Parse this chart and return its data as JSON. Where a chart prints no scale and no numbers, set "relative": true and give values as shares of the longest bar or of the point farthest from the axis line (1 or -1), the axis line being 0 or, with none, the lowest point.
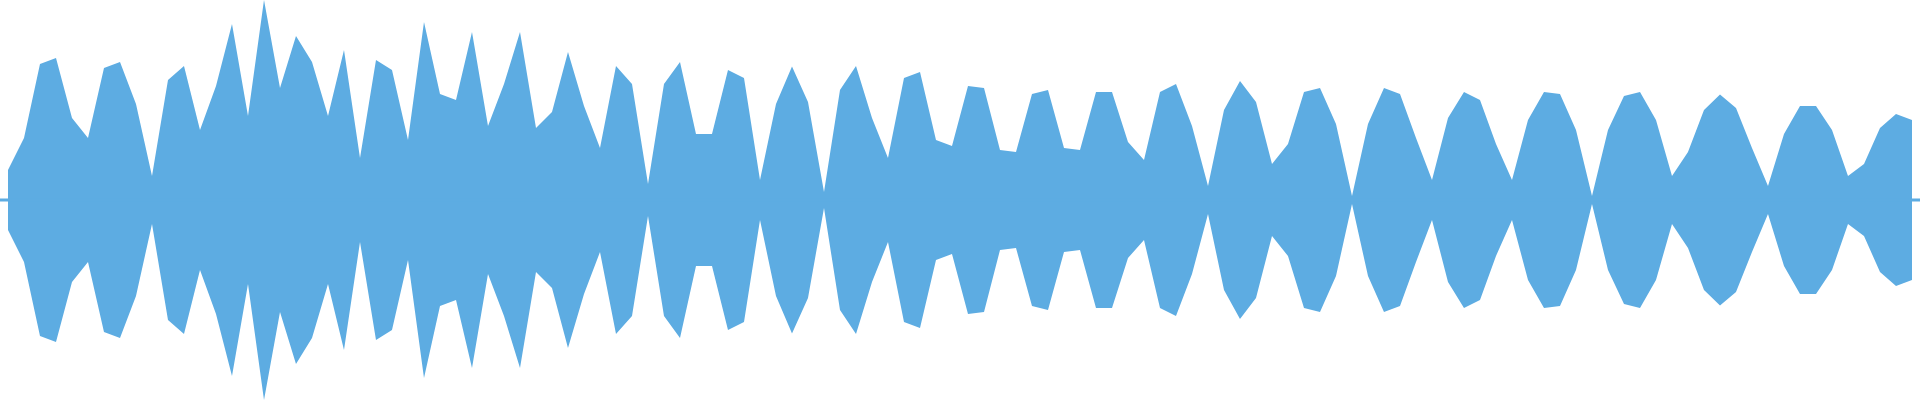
{
  "chart_data": {
    "type": "area",
    "relative": true,
    "ref_lines": [
      {
        "axis": "y",
        "value": 0,
        "color": "#5dace2"
      }
    ],
    "categories": [
      null,
      null,
      null,
      null,
      null,
      null,
      null,
      null,
      null,
      null,
      null,
      null,
      null,
      null,
      null,
      null,
      null,
      null,
      null,
      null,
      null,
      null,
      null,
      null,
      null,
      null,
      null,
      null,
      null,
      null,
      null,
      null,
      null,
      null,
      null,
      null,
      null,
      null,
      null,
      null,
      null,
      null,
      null,
      null,
      null,
      null,
      null,
      null,
      null,
      null,
      null,
      null,
      null,
      null,
      null,
      null,
      null,
      null,
      null,
      null,
      null,
      null,
      null,
      null,
      null,
      null,
      null,
      null,
      null,
      null,
      null,
      null,
      null,
      null,
      null,
      null,
      null,
      null,
      null,
      null,
      null,
      null,
      null,
      null,
      null,
      null,
      null,
      null,
      null,
      null,
      null,
      null,
      null,
      null,
      null,
      null,
      null,
      null,
      null,
      null,
      null,
      null,
      null,
      null,
      null,
      null,
      null,
      null,
      null,
      null,
      null,
      null,
      null,
      null,
      null,
      null,
      null,
      null,
      null,
      null
    ],
    "series": [
      {
        "color": "#5dace2",
        "values": [
          0.15,
          0.31,
          0.68,
          0.71,
          0.41,
          0.31,
          0.66,
          0.69,
          0.48,
          0.12,
          0.6,
          0.67,
          0.35,
          0.57,
          0.88,
          0.42,
          1,
          0.56,
          0.82,
          0.69,
          0.42,
          0.75,
          0.21,
          0.7,
          0.65,
          0.3,
          0.89,
          0.53,
          0.5,
          0.84,
          0.37,
          0.58,
          0.84,
          0.36,
          0.44,
          0.74,
          0.47,
          0.26,
          0.67,
          0.58,
          0.08,
          0.58,
          0.69,
          0.33,
          0.33,
          0.65,
          0.61,
          0.1,
          0.48,
          0.667,
          0.49,
          0.04,
          0.55,
          0.67,
          0.41,
          0.21,
          0.61,
          0.64,
          0.3,
          0.27,
          0.57,
          0.56,
          0.25,
          0.24,
          0.53,
          0.55,
          0.26,
          0.25,
          0.54,
          0.54,
          0.29,
          0.2,
          0.54,
          0.58,
          0.37,
          0.07,
          0.45,
          0.595,
          0.49,
          0.18,
          0.28,
          0.54,
          0.56,
          0.38,
          0.02,
          0.38,
          0.56,
          0.53,
          0.31,
          0.1,
          0.41,
          0.54,
          0.5,
          0.28,
          0.1,
          0.4,
          0.54,
          0.53,
          0.35,
          0.02,
          0.35,
          0.52,
          0.54,
          0.4,
          0.12,
          0.24,
          0.45,
          0.528,
          0.46,
          0.26,
          0.07,
          0.33,
          0.47,
          0.47,
          0.35,
          0.12,
          0.18,
          0.36,
          0.43,
          0.4
        ]
      },
      {
        "color": "#5dace2",
        "values": [
          -0.15,
          -0.31,
          -0.68,
          -0.71,
          -0.41,
          -0.31,
          -0.66,
          -0.69,
          -0.48,
          -0.12,
          -0.6,
          -0.67,
          -0.35,
          -0.57,
          -0.88,
          -0.42,
          -1,
          -0.56,
          -0.82,
          -0.69,
          -0.42,
          -0.75,
          -0.21,
          -0.7,
          -0.65,
          -0.3,
          -0.89,
          -0.53,
          -0.5,
          -0.84,
          -0.37,
          -0.58,
          -0.84,
          -0.36,
          -0.44,
          -0.74,
          -0.47,
          -0.26,
          -0.67,
          -0.58,
          -0.08,
          -0.58,
          -0.69,
          -0.33,
          -0.33,
          -0.65,
          -0.61,
          -0.1,
          -0.48,
          -0.667,
          -0.49,
          -0.04,
          -0.55,
          -0.67,
          -0.41,
          -0.21,
          -0.61,
          -0.64,
          -0.3,
          -0.27,
          -0.57,
          -0.56,
          -0.25,
          -0.24,
          -0.53,
          -0.55,
          -0.26,
          -0.25,
          -0.54,
          -0.54,
          -0.29,
          -0.2,
          -0.54,
          -0.58,
          -0.37,
          -0.07,
          -0.45,
          -0.595,
          -0.49,
          -0.18,
          -0.28,
          -0.54,
          -0.56,
          -0.38,
          -0.02,
          -0.38,
          -0.56,
          -0.53,
          -0.31,
          -0.1,
          -0.41,
          -0.54,
          -0.5,
          -0.28,
          -0.1,
          -0.4,
          -0.54,
          -0.53,
          -0.35,
          -0.02,
          -0.35,
          -0.52,
          -0.54,
          -0.4,
          -0.12,
          -0.24,
          -0.45,
          -0.528,
          -0.46,
          -0.26,
          -0.07,
          -0.33,
          -0.47,
          -0.47,
          -0.35,
          -0.12,
          -0.18,
          -0.36,
          -0.43,
          -0.4
        ]
      }
    ]
  }
}
